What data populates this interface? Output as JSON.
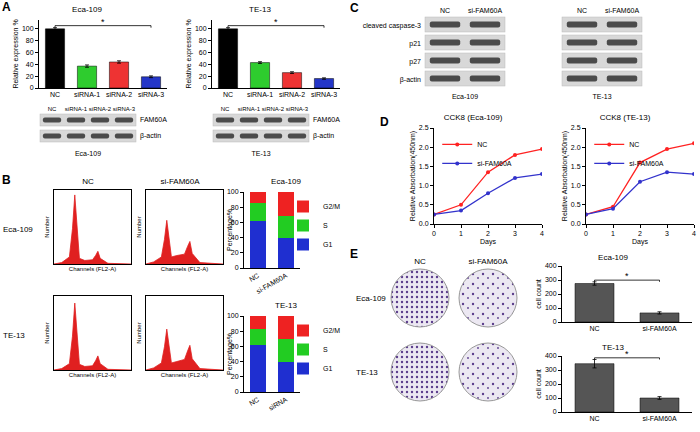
{
  "panel_labels": [
    "A",
    "B",
    "C",
    "D",
    "E"
  ],
  "chart_data": [
    {
      "type": "bar",
      "title": "Eca-109",
      "ylabel": "Relative expression %",
      "categories": [
        "NC",
        "siRNA-1",
        "siRNA-2",
        "siRNA-3"
      ],
      "values": [
        100,
        37,
        44,
        19
      ],
      "errors": [
        2,
        2,
        2,
        1.5
      ],
      "colors": [
        "#000000",
        "#2ecc2e",
        "#ee3333",
        "#2436c8"
      ],
      "ylim": [
        0,
        115
      ],
      "yticks": [
        0,
        20,
        40,
        60,
        80,
        100
      ],
      "annotations": [
        {
          "text": "*",
          "from": "NC",
          "to": "siRNA-3"
        }
      ]
    },
    {
      "type": "bar",
      "title": "TE-13",
      "ylabel": "Relative expression %",
      "categories": [
        "NC",
        "siRNA-1",
        "siRNA-2",
        "siRNA-3"
      ],
      "values": [
        100,
        43,
        26,
        16
      ],
      "errors": [
        2,
        1.5,
        1.5,
        1.2
      ],
      "colors": [
        "#000000",
        "#2ecc2e",
        "#ee3333",
        "#2436c8"
      ],
      "ylim": [
        0,
        115
      ],
      "yticks": [
        0,
        20,
        40,
        60,
        80,
        100
      ],
      "annotations": [
        {
          "text": "*",
          "from": "NC",
          "to": "siRNA-3"
        }
      ]
    },
    {
      "type": "area",
      "title": "NC",
      "xlabel": "Channels (FL2-A)",
      "ylabel": "Number",
      "x": [
        0,
        10,
        20,
        24,
        27,
        30,
        33,
        40,
        50,
        54,
        57,
        60,
        70,
        100
      ],
      "values": [
        0,
        2,
        10,
        50,
        98,
        50,
        8,
        5,
        6,
        12,
        18,
        8,
        1,
        0
      ],
      "color": "#e02020",
      "xlim": [
        0,
        100
      ],
      "ylim": [
        0,
        105
      ],
      "tick_labels": false
    },
    {
      "type": "area",
      "title": "si-FAM60A",
      "xlabel": "Channels (FL2-A)",
      "ylabel": "Number",
      "x": [
        0,
        10,
        20,
        24,
        27,
        30,
        33,
        40,
        50,
        54,
        57,
        60,
        70,
        100
      ],
      "values": [
        0,
        3,
        10,
        35,
        62,
        35,
        10,
        12,
        14,
        25,
        32,
        15,
        2,
        0
      ],
      "color": "#e02020",
      "xlim": [
        0,
        100
      ],
      "ylim": [
        0,
        105
      ],
      "tick_labels": false
    },
    {
      "type": "area",
      "xlabel": "Channels (FL2-A)",
      "ylabel": "Number",
      "x": [
        0,
        10,
        20,
        24,
        27,
        30,
        33,
        40,
        50,
        54,
        57,
        60,
        70,
        100
      ],
      "values": [
        0,
        2,
        9,
        48,
        95,
        48,
        8,
        5,
        6,
        13,
        20,
        9,
        1,
        0
      ],
      "color": "#e02020",
      "xlim": [
        0,
        100
      ],
      "ylim": [
        0,
        105
      ],
      "tick_labels": false
    },
    {
      "type": "area",
      "xlabel": "Channels (FL2-A)",
      "ylabel": "Number",
      "x": [
        0,
        10,
        20,
        24,
        27,
        30,
        33,
        40,
        50,
        54,
        57,
        60,
        70,
        100
      ],
      "values": [
        0,
        3,
        10,
        33,
        58,
        33,
        10,
        12,
        15,
        27,
        35,
        16,
        2,
        0
      ],
      "color": "#e02020",
      "xlim": [
        0,
        100
      ],
      "ylim": [
        0,
        105
      ],
      "tick_labels": false
    },
    {
      "type": "bar",
      "stacked": true,
      "title": "Eca-109",
      "ylabel": "Percentage%",
      "categories": [
        "NC",
        "si-FAM60A"
      ],
      "series": [
        {
          "name": "G1",
          "color": "#1f2fd0",
          "values": [
            62,
            40
          ]
        },
        {
          "name": "S",
          "color": "#22cc22",
          "values": [
            23,
            28
          ]
        },
        {
          "name": "G2/M",
          "color": "#ee2222",
          "values": [
            15,
            32
          ]
        }
      ],
      "ylim": [
        0,
        100
      ],
      "yticks": [
        0,
        20,
        40,
        60,
        80,
        100
      ],
      "legend": "right"
    },
    {
      "type": "bar",
      "stacked": true,
      "title": "TE-13",
      "ylabel": "Percentage%",
      "categories": [
        "NC",
        "siRNA"
      ],
      "series": [
        {
          "name": "G1",
          "color": "#1f2fd0",
          "values": [
            62,
            40
          ]
        },
        {
          "name": "S",
          "color": "#22cc22",
          "values": [
            21,
            30
          ]
        },
        {
          "name": "G2/M",
          "color": "#ee2222",
          "values": [
            17,
            30
          ]
        }
      ],
      "ylim": [
        0,
        100
      ],
      "yticks": [
        0,
        20,
        40,
        60,
        80,
        100
      ],
      "legend": "right"
    },
    {
      "type": "line",
      "title": "CCK8 (Eca-109)",
      "xlabel": "Days",
      "ylabel": "Relative Absorbation(450nm)",
      "x": [
        0,
        1,
        2,
        3,
        4
      ],
      "series": [
        {
          "name": "NC",
          "color": "#ff2222",
          "values": [
            0.25,
            0.5,
            1.35,
            1.8,
            1.95
          ]
        },
        {
          "name": "si-FAM60A",
          "color": "#3333cc",
          "values": [
            0.25,
            0.35,
            0.8,
            1.2,
            1.3
          ]
        }
      ],
      "xlim": [
        0,
        4
      ],
      "xticks": [
        0,
        1,
        2,
        3,
        4
      ],
      "ylim": [
        0,
        2.5
      ],
      "yticks": [
        {
          "value": 0,
          "label": "0.0"
        },
        {
          "value": 0.5,
          "label": "0.5"
        },
        {
          "value": 1,
          "label": "1.0"
        },
        {
          "value": 1.5,
          "label": "1.5"
        },
        {
          "value": 2,
          "label": "2.0"
        },
        {
          "value": 2.5,
          "label": "2.5"
        }
      ],
      "legend": "top-left",
      "marker": "circle"
    },
    {
      "type": "line",
      "title": "CCK8 (TE-13)",
      "xlabel": "Days",
      "ylabel": "Relative Absorbation(450nm)",
      "x": [
        0,
        1,
        2,
        3,
        4
      ],
      "series": [
        {
          "name": "NC",
          "color": "#ff2222",
          "values": [
            0.25,
            0.45,
            1.6,
            1.95,
            2.1
          ]
        },
        {
          "name": "si-FAM60A",
          "color": "#3333cc",
          "values": [
            0.25,
            0.4,
            1.1,
            1.35,
            1.3
          ]
        }
      ],
      "xlim": [
        0,
        4
      ],
      "xticks": [
        0,
        1,
        2,
        3,
        4
      ],
      "ylim": [
        0,
        2.5
      ],
      "yticks": [
        {
          "value": 0,
          "label": "0.0"
        },
        {
          "value": 0.5,
          "label": "0.5"
        },
        {
          "value": 1,
          "label": "1.0"
        },
        {
          "value": 1.5,
          "label": "1.5"
        },
        {
          "value": 2,
          "label": "2.0"
        },
        {
          "value": 2.5,
          "label": "2.5"
        }
      ],
      "legend": "top-left",
      "marker": "circle"
    },
    {
      "type": "bar",
      "title": "Eca-109",
      "ylabel": "cell count",
      "categories": [
        "NC",
        "si-FAM60A"
      ],
      "values": [
        275,
        65
      ],
      "errors": [
        12,
        8
      ],
      "color": "#555555",
      "ylim": [
        0,
        400
      ],
      "yticks": [
        0,
        100,
        200,
        300,
        400
      ],
      "annotations": [
        {
          "text": "*",
          "from": "NC",
          "to": "si-FAM60A"
        }
      ]
    },
    {
      "type": "bar",
      "title": "TE-13",
      "ylabel": "cell count",
      "categories": [
        "NC",
        "si-FAM60A"
      ],
      "values": [
        345,
        100
      ],
      "errors": [
        30,
        10
      ],
      "color": "#555555",
      "ylim": [
        0,
        400
      ],
      "yticks": [
        0,
        100,
        200,
        300,
        400
      ],
      "annotations": [
        {
          "text": "*",
          "from": "NC",
          "to": "si-FAM60A"
        }
      ]
    }
  ],
  "blots": [
    {
      "lanes": [
        "NC",
        "siRNA-1",
        "siRNA-2",
        "siRNA-3"
      ],
      "rows": [
        "FAM60A",
        "β-actin"
      ],
      "caption": "Eca-109"
    },
    {
      "lanes": [
        "NC",
        "siRNA-1",
        "siRNA-2",
        "siRNA-3"
      ],
      "rows": [
        "FAM60A",
        "β-actin"
      ],
      "caption": "TE-13"
    }
  ],
  "blots_c": {
    "lanes": [
      "NC",
      "si-FAM60A"
    ],
    "rows": [
      "cleaved caspase-3",
      "p21",
      "p27",
      "β-actin"
    ],
    "captions": [
      "Eca-109",
      "TE-13"
    ]
  },
  "flow_rows": [
    "Eca-109",
    "TE-13"
  ],
  "colony": {
    "columns": [
      "NC",
      "si-FAM60A"
    ],
    "rows": [
      "Eca-109",
      "TE-13"
    ]
  }
}
